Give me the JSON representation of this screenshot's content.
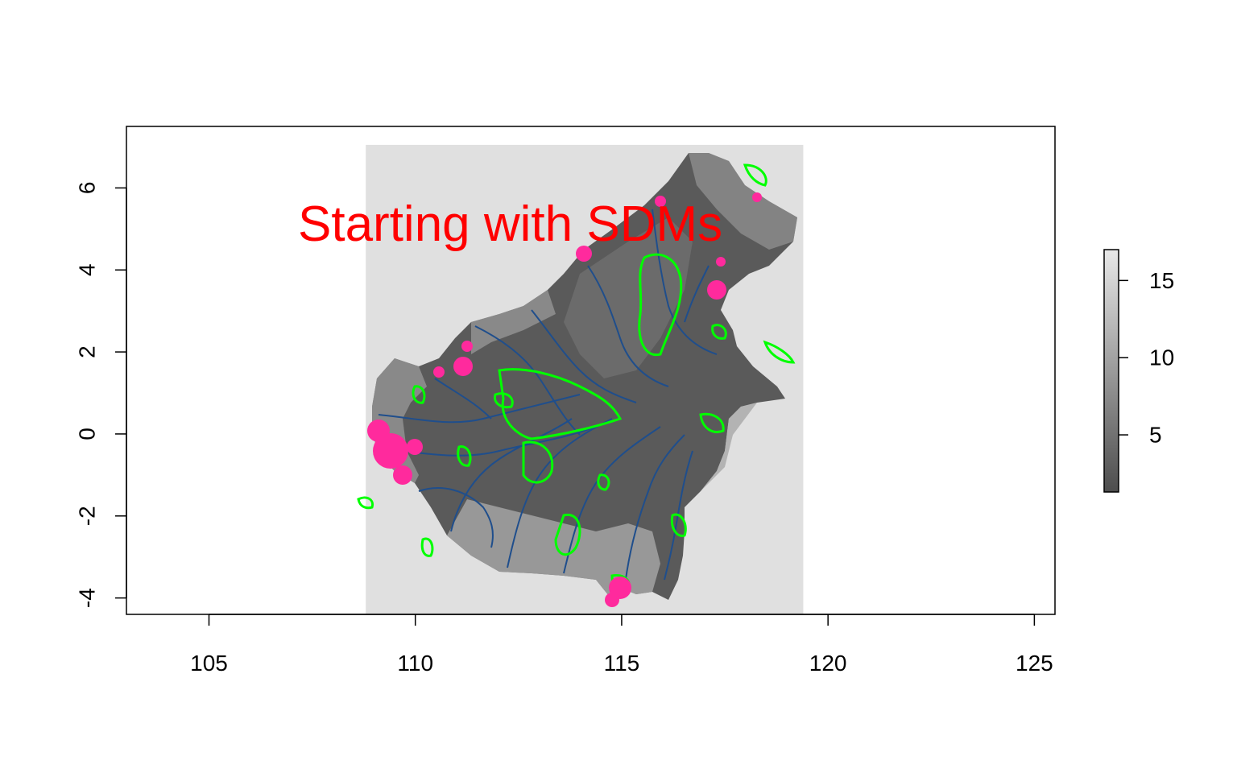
{
  "chart_data": {
    "type": "map",
    "xlim": [
      103,
      125.5
    ],
    "ylim": [
      -4.4,
      7.5
    ],
    "x_ticks": [
      105,
      110,
      115,
      120,
      125
    ],
    "y_ticks": [
      -4,
      -2,
      0,
      2,
      4,
      6
    ],
    "x_tick_labels": [
      "105",
      "110",
      "115",
      "120",
      "125"
    ],
    "y_tick_labels": [
      "-4",
      "-2",
      "0",
      "2",
      "4",
      "6"
    ],
    "raster_extent": {
      "xmin": 108.8,
      "xmax": 119.4,
      "ymin": -4.4,
      "ymax": 7.05
    },
    "colorbar": {
      "min": 1.3,
      "max": 17,
      "ticks": [
        5,
        10,
        15
      ],
      "tick_labels": [
        "5",
        "10",
        "15"
      ],
      "low_color": "#4d4d4d",
      "high_color": "#e8e8e8"
    },
    "annotation": {
      "text": "Starting with SDMs",
      "x": 112.3,
      "y": 5.1,
      "color": "#ff0000"
    },
    "layers": [
      {
        "name": "rivers",
        "color": "#1f4e8c"
      },
      {
        "name": "protected-areas",
        "color": "#00ff00"
      },
      {
        "name": "occurrence-points",
        "color": "#ff2a9d"
      }
    ],
    "background_color": "#e0e0e0"
  }
}
